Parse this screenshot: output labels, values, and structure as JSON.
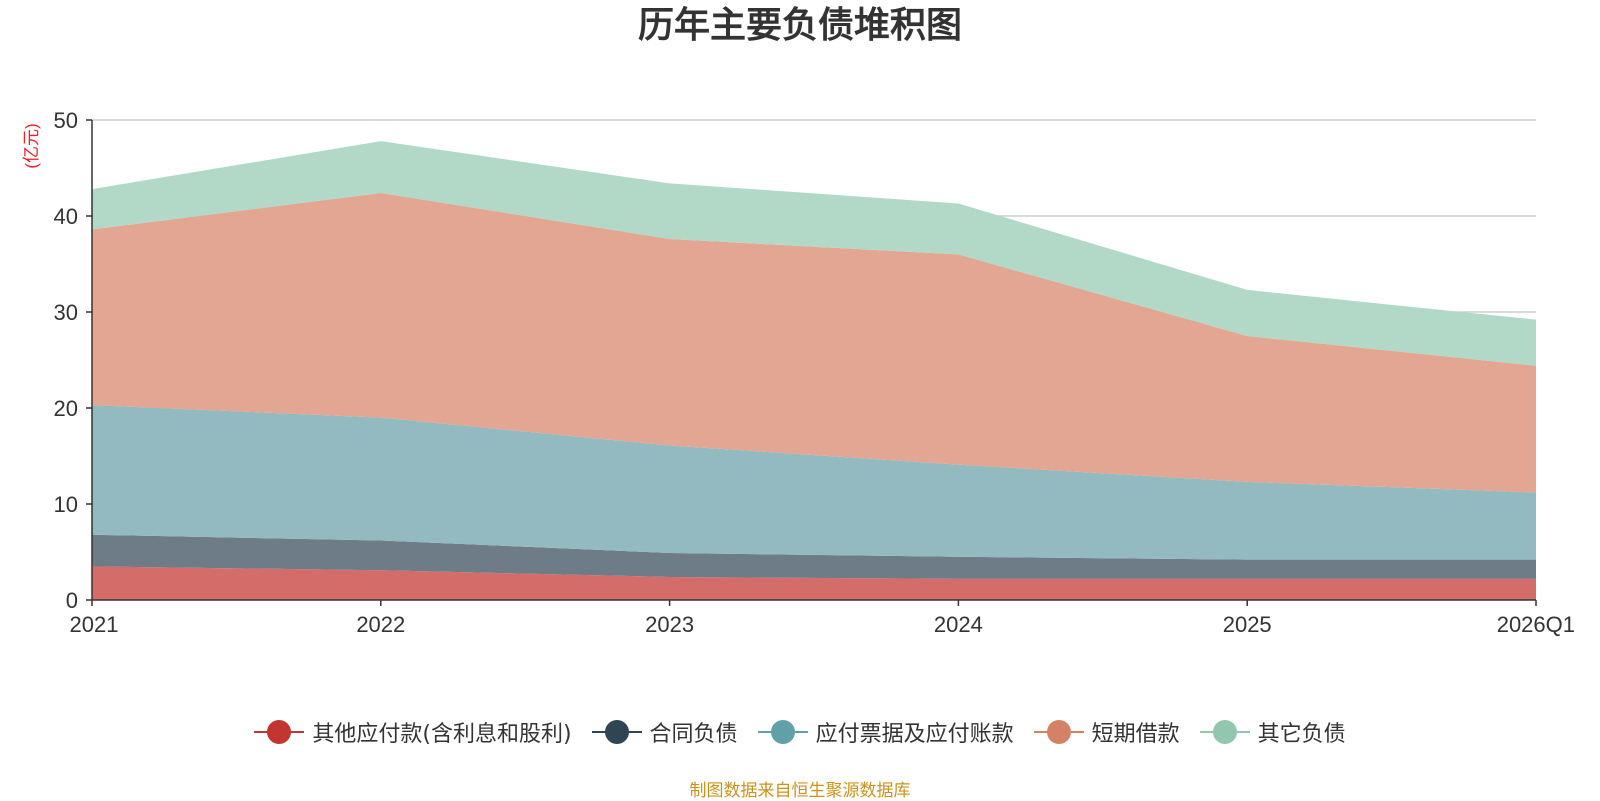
{
  "title": "历年主要负债堆积图",
  "source_note": "制图数据来自恒生聚源数据库",
  "chart_data": {
    "type": "area",
    "stacked": true,
    "title": "历年主要负债堆积图",
    "ylabel": "(亿元)",
    "xlabel": "",
    "categories": [
      "2021",
      "2022",
      "2023",
      "2024",
      "2025",
      "2026Q1"
    ],
    "ylim": [
      0,
      50
    ],
    "yticks": [
      0,
      10,
      20,
      30,
      40,
      50
    ],
    "grid": true,
    "legend_position": "bottom",
    "series": [
      {
        "name": "其他应付款(含利息和股利)",
        "color": "#c23531",
        "fill": "#d46c6a",
        "values": [
          3.5,
          3.1,
          2.4,
          2.2,
          2.2,
          2.2
        ]
      },
      {
        "name": "合同负债",
        "color": "#2f4554",
        "fill": "#6e7c87",
        "values": [
          3.3,
          3.1,
          2.5,
          2.3,
          2.0,
          2.0
        ]
      },
      {
        "name": "应付票据及应付账款",
        "color": "#61a0a8",
        "fill": "#92bac0",
        "values": [
          13.5,
          12.8,
          11.2,
          9.6,
          8.1,
          7.0
        ]
      },
      {
        "name": "短期借款",
        "color": "#d48265",
        "fill": "#e2a692",
        "values": [
          18.3,
          23.4,
          21.5,
          21.9,
          15.2,
          13.2
        ]
      },
      {
        "name": "其它负债",
        "color": "#91c7ae",
        "fill": "#b2d9c7",
        "values": [
          4.2,
          5.4,
          5.8,
          5.3,
          4.8,
          4.8
        ]
      }
    ]
  }
}
